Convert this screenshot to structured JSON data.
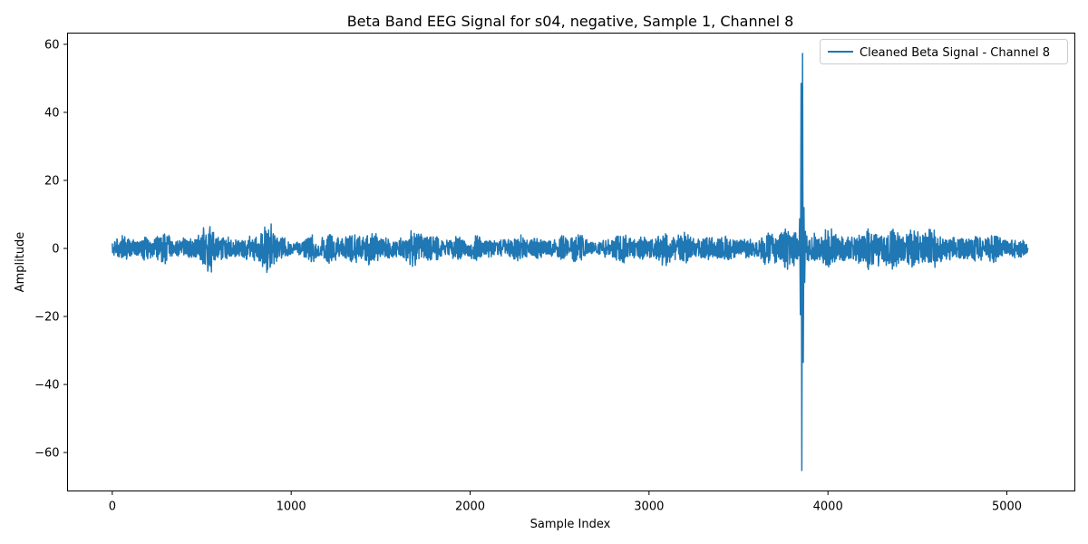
{
  "chart_data": {
    "type": "line",
    "title": "Beta Band EEG Signal for s04, negative, Sample 1, Channel 8",
    "xlabel": "Sample Index",
    "ylabel": "Amplitude",
    "xlim": [
      -250,
      5380
    ],
    "ylim": [
      -71.3,
      63.3
    ],
    "xticks": [
      0,
      1000,
      2000,
      3000,
      4000,
      5000
    ],
    "xtick_labels": [
      "0",
      "1000",
      "2000",
      "3000",
      "4000",
      "5000"
    ],
    "yticks": [
      -60,
      -40,
      -20,
      0,
      20,
      40,
      60
    ],
    "ytick_labels": [
      "−60",
      "−40",
      "−20",
      "0",
      "20",
      "40",
      "60"
    ],
    "grid": false,
    "legend_position": "top-right",
    "series": [
      {
        "name": "Cleaned Beta Signal - Channel 8",
        "color": "#1f77b4",
        "sample_count": 5120,
        "envelope": [
          [
            0,
            4
          ],
          [
            200,
            5
          ],
          [
            400,
            4.5
          ],
          [
            560,
            8.5
          ],
          [
            600,
            4
          ],
          [
            800,
            5.5
          ],
          [
            880,
            8.5
          ],
          [
            1000,
            3
          ],
          [
            1200,
            5.5
          ],
          [
            1400,
            6
          ],
          [
            1600,
            5
          ],
          [
            1700,
            6.5
          ],
          [
            1800,
            5
          ],
          [
            2000,
            4
          ],
          [
            2200,
            4.5
          ],
          [
            2400,
            4
          ],
          [
            2600,
            5
          ],
          [
            2700,
            3
          ],
          [
            2800,
            5
          ],
          [
            3000,
            5
          ],
          [
            3100,
            6
          ],
          [
            3300,
            5
          ],
          [
            3500,
            4
          ],
          [
            3700,
            6
          ],
          [
            3830,
            8
          ],
          [
            3900,
            7
          ],
          [
            4100,
            6
          ],
          [
            4200,
            8
          ],
          [
            4300,
            7
          ],
          [
            4500,
            8
          ],
          [
            4600,
            6
          ],
          [
            4800,
            5
          ],
          [
            5000,
            5
          ],
          [
            5120,
            3
          ]
        ],
        "spikes": [
          {
            "x": 3842,
            "y": 8.7
          },
          {
            "x": 3846,
            "y": -19.5
          },
          {
            "x": 3850,
            "y": 48.5
          },
          {
            "x": 3854,
            "y": -65.3
          },
          {
            "x": 3858,
            "y": 57.3
          },
          {
            "x": 3862,
            "y": -33.5
          },
          {
            "x": 3866,
            "y": 12.0
          },
          {
            "x": 3870,
            "y": -10.0
          },
          {
            "x": 3874,
            "y": 5.0
          }
        ]
      }
    ]
  }
}
